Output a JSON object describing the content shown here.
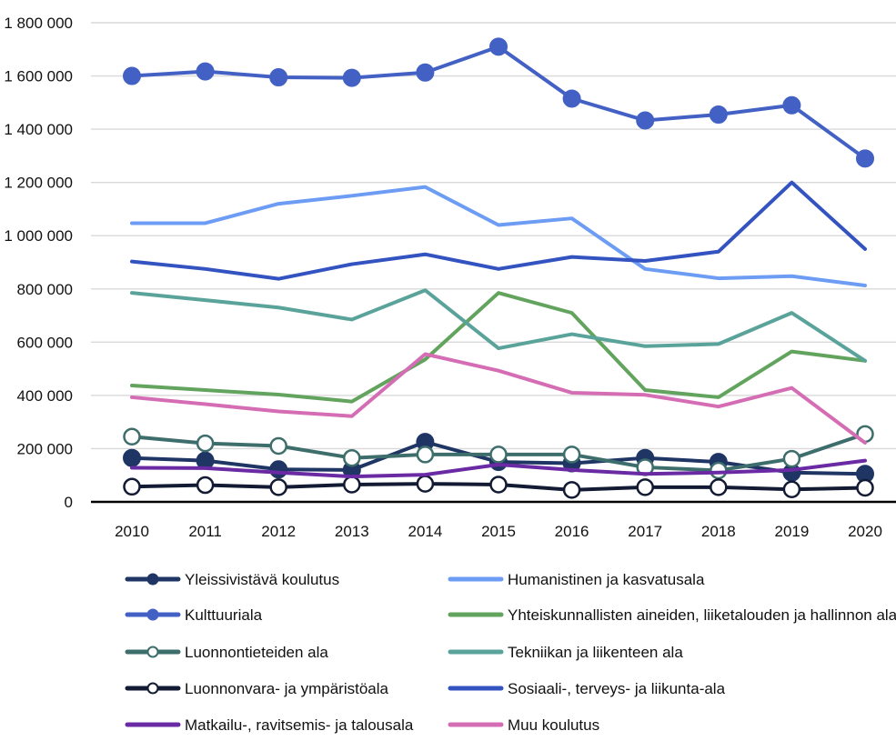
{
  "chart_data": {
    "type": "line",
    "title": "",
    "xlabel": "",
    "ylabel": "",
    "x": [
      "2010",
      "2011",
      "2012",
      "2013",
      "2014",
      "2015",
      "2016",
      "2017",
      "2018",
      "2019",
      "2020"
    ],
    "ylim": [
      0,
      1800000
    ],
    "yticks": [
      {
        "value": 0,
        "label": "0"
      },
      {
        "value": 200000,
        "label": "200 000"
      },
      {
        "value": 400000,
        "label": "400 000"
      },
      {
        "value": 600000,
        "label": "600 000"
      },
      {
        "value": 800000,
        "label": "800 000"
      },
      {
        "value": 1000000,
        "label": "1 000 000"
      },
      {
        "value": 1200000,
        "label": "1 200 000"
      },
      {
        "value": 1400000,
        "label": "1 400 000"
      },
      {
        "value": 1600000,
        "label": "1 600 000"
      },
      {
        "value": 1800000,
        "label": "1 800 000"
      }
    ],
    "grid": true,
    "legend_position": "bottom",
    "series": [
      {
        "name": "Yleissivistävä koulutus",
        "color": "#1f3564",
        "marker": "filled",
        "values": [
          165000,
          155000,
          122000,
          120000,
          225000,
          150000,
          145000,
          165000,
          150000,
          110000,
          105000
        ]
      },
      {
        "name": "Humanistinen ja kasvatusala",
        "color": "#6c9cf3",
        "marker": "none",
        "values": [
          1047000,
          1047000,
          1120000,
          1150000,
          1183000,
          1040000,
          1065000,
          875000,
          840000,
          848000,
          813000
        ]
      },
      {
        "name": "Kulttuuriala",
        "color": "#4361c4",
        "marker": "filled",
        "values": [
          1600000,
          1617000,
          1595000,
          1593000,
          1613000,
          1710000,
          1515000,
          1433000,
          1455000,
          1490000,
          1290000
        ]
      },
      {
        "name": "Yhteiskunnallisten aineiden, liiketalouden ja hallinnon ala",
        "color": "#62a35e",
        "marker": "none",
        "values": [
          437000,
          420000,
          403000,
          377000,
          535000,
          785000,
          710000,
          420000,
          393000,
          565000,
          530000
        ]
      },
      {
        "name": "Luonnontieteiden ala",
        "color": "#3e6e6c",
        "marker": "hollow",
        "values": [
          245000,
          220000,
          210000,
          165000,
          178000,
          178000,
          178000,
          130000,
          118000,
          162000,
          255000
        ]
      },
      {
        "name": "Tekniikan ja liikenteen ala",
        "color": "#5aa39b",
        "marker": "none",
        "values": [
          785000,
          758000,
          730000,
          685000,
          795000,
          577000,
          630000,
          585000,
          593000,
          710000,
          530000
        ]
      },
      {
        "name": "Luonnonvara- ja ympäristöala",
        "color": "#121b33",
        "marker": "hollow",
        "values": [
          57000,
          63000,
          55000,
          65000,
          68000,
          65000,
          45000,
          55000,
          55000,
          47000,
          53000
        ]
      },
      {
        "name": "Sosiaali-, terveys- ja liikunta-ala",
        "color": "#3353c0",
        "marker": "none",
        "values": [
          903000,
          875000,
          838000,
          893000,
          930000,
          875000,
          920000,
          905000,
          940000,
          1200000,
          950000
        ]
      },
      {
        "name": "Matkailu-, ravitsemis- ja talousala",
        "color": "#6a2aa4",
        "marker": "none",
        "values": [
          128000,
          127000,
          110000,
          95000,
          102000,
          140000,
          120000,
          105000,
          110000,
          120000,
          155000
        ]
      },
      {
        "name": "Muu koulutus",
        "color": "#d56db4",
        "marker": "none",
        "values": [
          393000,
          367000,
          340000,
          322000,
          555000,
          493000,
          410000,
          402000,
          358000,
          428000,
          222000
        ]
      }
    ]
  }
}
